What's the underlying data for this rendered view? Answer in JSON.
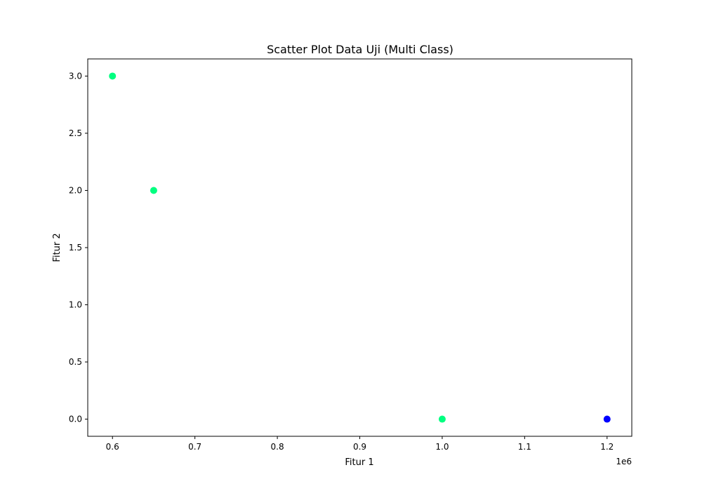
{
  "chart_data": {
    "type": "scatter",
    "title": "Scatter Plot Data Uji (Multi Class)",
    "xlabel": "Fitur 1",
    "ylabel": "Fitur 2",
    "x_offset_label": "1e6",
    "x_scale": 1000000,
    "xlim": [
      0.57,
      1.23
    ],
    "ylim": [
      -0.15,
      3.15
    ],
    "xticks": [
      0.6,
      0.7,
      0.8,
      0.9,
      1.0,
      1.1,
      1.2
    ],
    "xtick_labels": [
      "0.6",
      "0.7",
      "0.8",
      "0.9",
      "1.0",
      "1.1",
      "1.2"
    ],
    "yticks": [
      0.0,
      0.5,
      1.0,
      1.5,
      2.0,
      2.5,
      3.0
    ],
    "ytick_labels": [
      "0.0",
      "0.5",
      "1.0",
      "1.5",
      "2.0",
      "2.5",
      "3.0"
    ],
    "grid": false,
    "legend": false,
    "points": [
      {
        "x": 0.6,
        "y": 3.0,
        "color": "#00ff80"
      },
      {
        "x": 0.65,
        "y": 2.0,
        "color": "#00ff80"
      },
      {
        "x": 1.0,
        "y": 0.0,
        "color": "#00ff80"
      },
      {
        "x": 1.2,
        "y": 0.0,
        "color": "#0000ff"
      }
    ]
  }
}
